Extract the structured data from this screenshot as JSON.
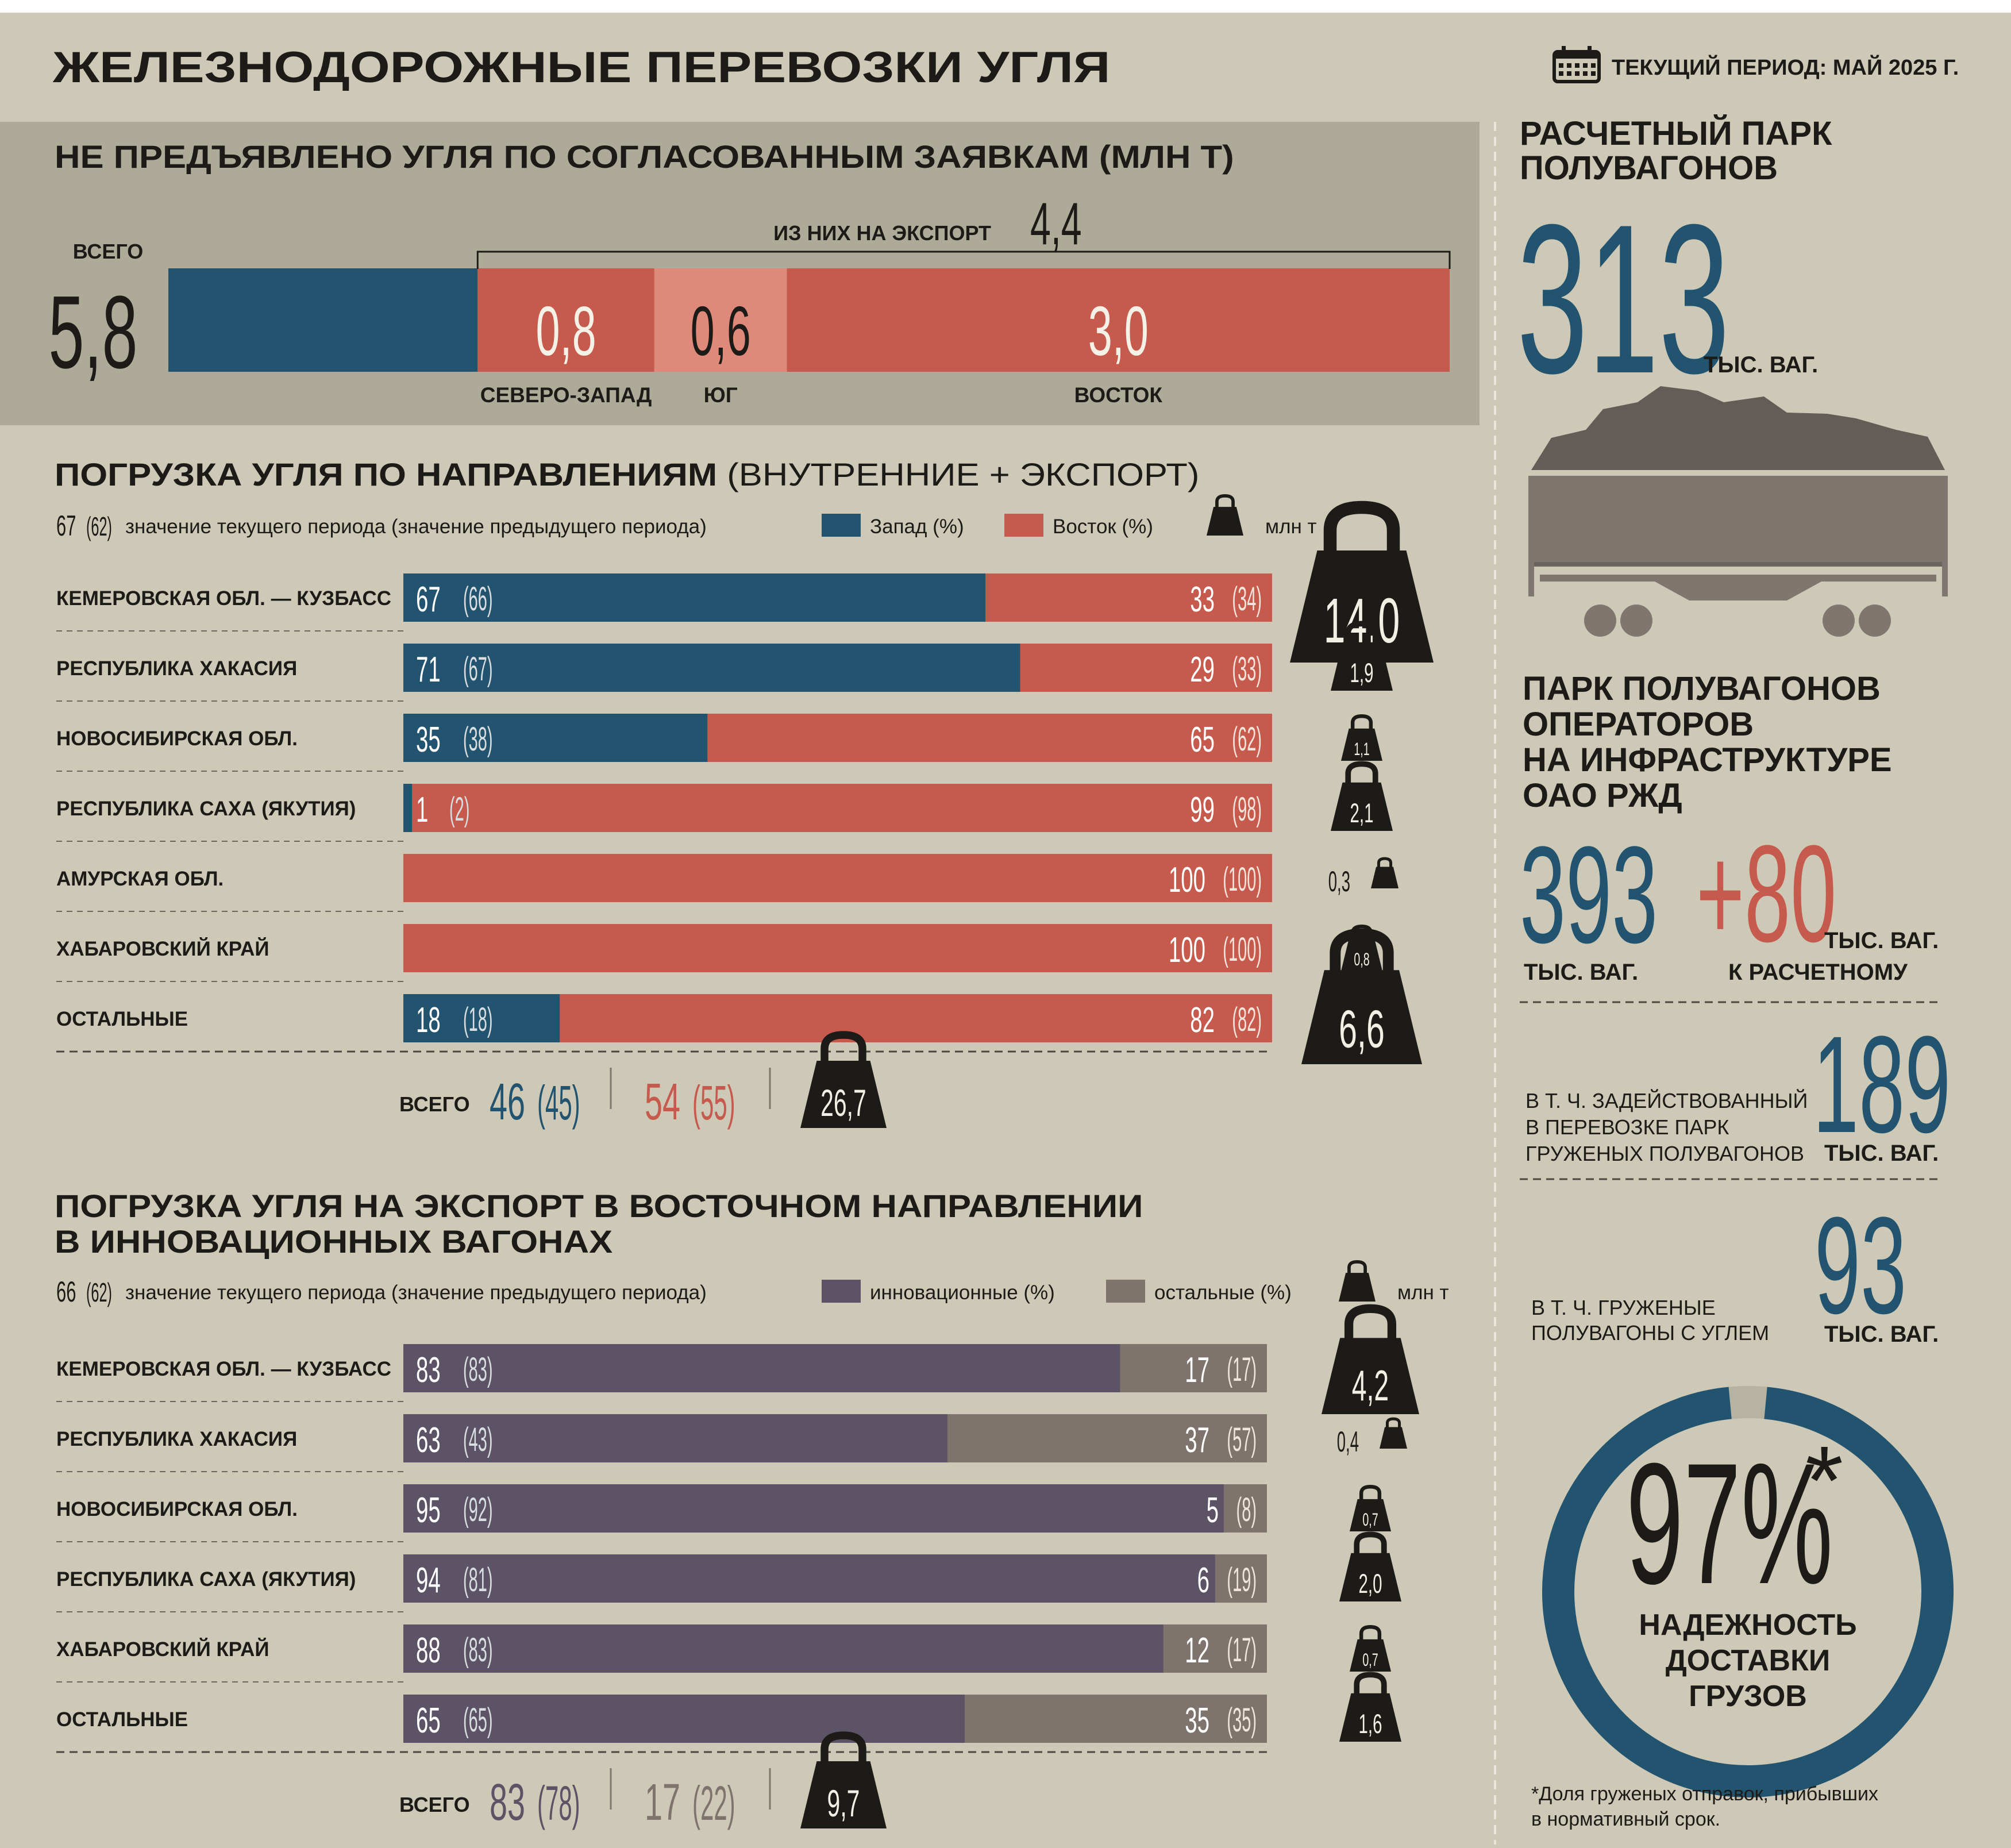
{
  "header": {
    "title": "ЖЕЛЕЗНОДОРОЖНЫЕ ПЕРЕВОЗКИ УГЛЯ",
    "period": "ТЕКУЩИЙ ПЕРИОД: МАЙ 2025 Г.",
    "calendar_icon": "calendar-icon"
  },
  "colors": {
    "bg": "#cdc9b6",
    "panel": "#adab98",
    "west": "#22546f",
    "east": "#c55a4d",
    "east_light": "#de897a",
    "innov": "#5d5366",
    "other": "#7e746d",
    "dark": "#1c1b17"
  },
  "chart_data": [
    {
      "type": "bar",
      "title": "НЕ ПРЕДЪЯВЛЕНО УГЛЯ ПО СОГЛАСОВАННЫМ ЗАЯВКАМ (МЛН Т)",
      "total_label": "ВСЕГО",
      "total": "5,8",
      "export_label": "ИЗ НИХ НА ЭКСПОРТ",
      "export_total": "4,4",
      "segments": [
        {
          "name": "",
          "value": 1.4,
          "label": ""
        },
        {
          "name": "СЕВЕРО-ЗАПАД",
          "value": 0.8,
          "label": "0,8"
        },
        {
          "name": "ЮГ",
          "value": 0.6,
          "label": "0,6"
        },
        {
          "name": "ВОСТОК",
          "value": 3.0,
          "label": "3,0"
        }
      ]
    },
    {
      "type": "bar",
      "title": "ПОГРУЗКА УГЛЯ ПО НАПРАВЛЕНИЯМ",
      "subtitle": "(ВНУТРЕННИЕ + ЭКСПОРТ)",
      "legend": {
        "example_current": "67",
        "example_previous": "(62)",
        "example_text": "значение текущего периода (значение предыдущего периода)",
        "series_a": "Запад (%)",
        "series_b": "Восток (%)",
        "weight": "млн т"
      },
      "categories": [
        "КЕМЕРОВСКАЯ ОБЛ. — КУЗБАСС",
        "РЕСПУБЛИКА ХАКАСИЯ",
        "НОВОСИБИРСКАЯ ОБЛ.",
        "РЕСПУБЛИКА САХА (ЯКУТИЯ)",
        "АМУРСКАЯ ОБЛ.",
        "ХАБАРОВСКИЙ КРАЙ",
        "ОСТАЛЬНЫЕ"
      ],
      "series": [
        {
          "name": "Запад (%)",
          "values": [
            67,
            71,
            35,
            1,
            0,
            0,
            18
          ],
          "previous": [
            66,
            67,
            38,
            2,
            0,
            0,
            18
          ]
        },
        {
          "name": "Восток (%)",
          "values": [
            33,
            29,
            65,
            99,
            100,
            100,
            82
          ],
          "previous": [
            34,
            33,
            62,
            98,
            100,
            100,
            82
          ]
        }
      ],
      "weights": [
        "14,0",
        "1,9",
        "1,1",
        "2,1",
        "0,3",
        "0,8",
        "6,6"
      ],
      "weight_values": [
        14.0,
        1.9,
        1.1,
        2.1,
        0.3,
        0.8,
        6.6
      ],
      "total": {
        "label": "ВСЕГО",
        "a": "46",
        "a_prev": "(45)",
        "b": "54",
        "b_prev": "(55)",
        "weight": "26,7"
      }
    },
    {
      "type": "bar",
      "title": "ПОГРУЗКА УГЛЯ НА ЭКСПОРТ В ВОСТОЧНОМ НАПРАВЛЕНИИ",
      "title_line2": "В ИННОВАЦИОННЫХ ВАГОНАХ",
      "legend": {
        "example_current": "66",
        "example_previous": "(62)",
        "example_text": "значение текущего периода (значение предыдущего периода)",
        "series_a": "инновационные (%)",
        "series_b": "остальные (%)",
        "weight": "млн т"
      },
      "categories": [
        "КЕМЕРОВСКАЯ ОБЛ. — КУЗБАСС",
        "РЕСПУБЛИКА ХАКАСИЯ",
        "НОВОСИБИРСКАЯ ОБЛ.",
        "РЕСПУБЛИКА САХА (ЯКУТИЯ)",
        "ХАБАРОВСКИЙ КРАЙ",
        "ОСТАЛЬНЫЕ"
      ],
      "series": [
        {
          "name": "инновационные (%)",
          "values": [
            83,
            63,
            95,
            94,
            88,
            65
          ],
          "previous": [
            83,
            43,
            92,
            81,
            83,
            65
          ]
        },
        {
          "name": "остальные (%)",
          "values": [
            17,
            37,
            5,
            6,
            12,
            35
          ],
          "previous": [
            17,
            57,
            8,
            19,
            17,
            35
          ]
        }
      ],
      "weights": [
        "4,2",
        "0,4",
        "0,7",
        "2,0",
        "0,7",
        "1,6"
      ],
      "weight_values": [
        4.2,
        0.4,
        0.7,
        2.0,
        0.7,
        1.6
      ],
      "total": {
        "label": "ВСЕГО",
        "a": "83",
        "a_prev": "(78)",
        "b": "17",
        "b_prev": "(22)",
        "weight": "9,7"
      }
    }
  ],
  "sidebar": {
    "fleet_title_1": "РАСЧЕТНЫЙ ПАРК",
    "fleet_title_2": "ПОЛУВАГОНОВ",
    "fleet_value": "313",
    "fleet_unit": "ТЫС. ВАГ.",
    "wagon_icon": "gondola-wagon-icon",
    "ops_title": [
      "ПАРК ПОЛУВАГОНОВ",
      "ОПЕРАТОРОВ",
      "НА ИНФРАСТРУКТУРЕ",
      "ОАО РЖД"
    ],
    "ops_value": "393",
    "ops_unit": "ТЫС. ВАГ.",
    "ops_delta": "+80",
    "ops_delta_unit": "ТЫС. ВАГ.",
    "ops_delta_label": "К РАСЧЕТНОМУ",
    "loaded_label": [
      "В Т. Ч. ЗАДЕЙСТВОВАННЫЙ",
      "В ПЕРЕВОЗКЕ ПАРК",
      "ГРУЖЕНЫХ ПОЛУВАГОНОВ"
    ],
    "loaded_value": "189",
    "loaded_unit": "ТЫС. ВАГ.",
    "coal_label": [
      "В Т. Ч. ГРУЖЕНЫЕ",
      "ПОЛУВАГОНЫ С УГЛЕМ"
    ],
    "coal_value": "93",
    "coal_unit": "ТЫС. ВАГ.",
    "reliability_value": "97%",
    "reliability_star": "*",
    "reliability_fraction": 0.97,
    "reliability_label": [
      "НАДЕЖНОСТЬ",
      "ДОСТАВКИ",
      "ГРУЗОВ"
    ],
    "footnote": [
      "*Доля груженых отправок, прибывших",
      "в нормативный срок."
    ]
  }
}
